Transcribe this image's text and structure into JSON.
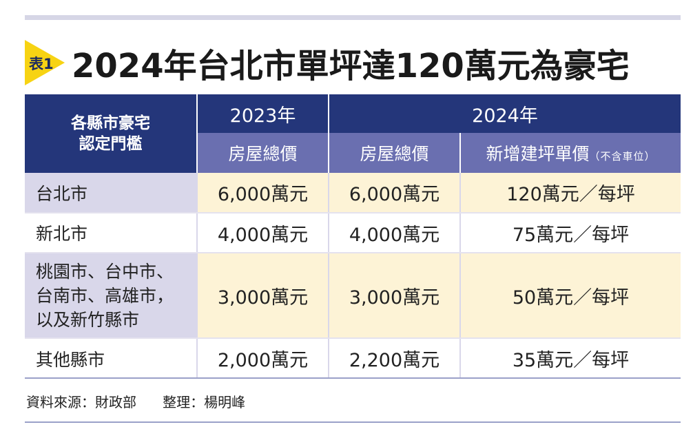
{
  "badge": "表1",
  "title": "2024年台北市單坪達120萬元為豪宅",
  "table": {
    "corner_label": [
      "各縣市豪宅",
      "認定門檻"
    ],
    "years": [
      "2023年",
      "2024年"
    ],
    "subheaders": {
      "col1": "房屋總價",
      "col2": "房屋總價",
      "col3": "新增建坪單價",
      "col3_note": "（不含車位）"
    },
    "rows": [
      {
        "name": [
          "台北市"
        ],
        "v2023": "6,000萬元",
        "v2024": "6,000萬元",
        "unit": "120萬元／每坪"
      },
      {
        "name": [
          "新北市"
        ],
        "v2023": "4,000萬元",
        "v2024": "4,000萬元",
        "unit": "75萬元／每坪"
      },
      {
        "name": [
          "桃園市、台中市、",
          "台南市、高雄市，",
          "以及新竹縣市"
        ],
        "v2023": "3,000萬元",
        "v2024": "3,000萬元",
        "unit": "50萬元／每坪"
      },
      {
        "name": [
          "其他縣市"
        ],
        "v2023": "2,000萬元",
        "v2024": "2,200萬元",
        "unit": "35萬元／每坪"
      }
    ]
  },
  "footer": {
    "source": "資料來源：財政部",
    "editor": "整理：楊明峰"
  },
  "colors": {
    "header_dark": "#24367a",
    "header_mid": "#6a6fb0",
    "row_label": "#d9d7ea",
    "cell_tan": "#fdf3d6",
    "badge": "#f7d313"
  }
}
